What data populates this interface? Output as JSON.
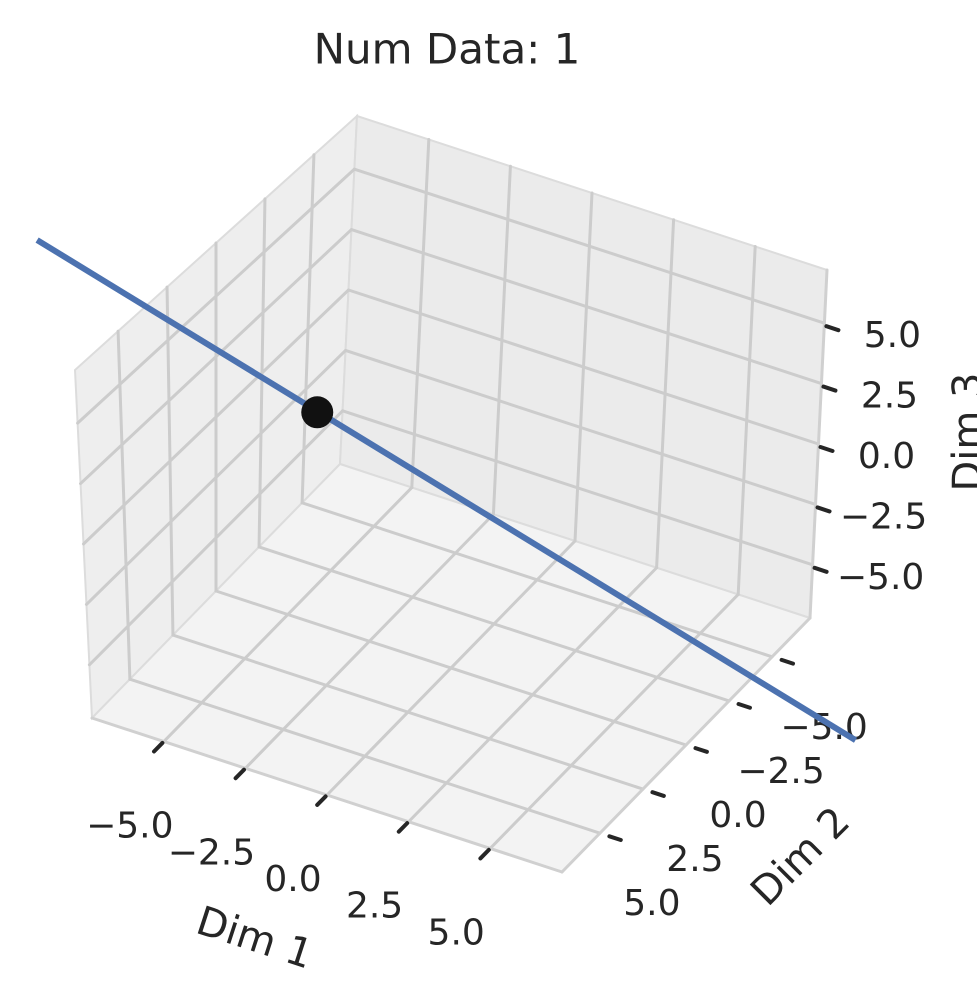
{
  "chart_data": {
    "type": "scatter3d",
    "title": "Num Data: 1",
    "xlabel": "Dim 1",
    "ylabel": "Dim 2",
    "zlabel": "Dim 3",
    "xlim": [
      -7.2,
      7.2
    ],
    "ylim": [
      -7.2,
      7.2
    ],
    "zlim": [
      -7.2,
      7.2
    ],
    "xticks": [
      {
        "value": -5,
        "label": "−5.0"
      },
      {
        "value": -2.5,
        "label": "−2.5"
      },
      {
        "value": 0,
        "label": "0.0"
      },
      {
        "value": 2.5,
        "label": "2.5"
      },
      {
        "value": 5,
        "label": "5.0"
      }
    ],
    "yticks": [
      {
        "value": -5,
        "label": "−5.0"
      },
      {
        "value": -2.5,
        "label": "−2.5"
      },
      {
        "value": 0,
        "label": "0.0"
      },
      {
        "value": 2.5,
        "label": "2.5"
      },
      {
        "value": 5,
        "label": "5.0"
      }
    ],
    "zticks": [
      {
        "value": -5,
        "label": "−5.0"
      },
      {
        "value": -2.5,
        "label": "−2.5"
      },
      {
        "value": 0,
        "label": "0.0"
      },
      {
        "value": 2.5,
        "label": "2.5"
      },
      {
        "value": 5,
        "label": "5.0"
      }
    ],
    "grid": true,
    "series": [
      {
        "type": "line",
        "color": "#4c72b0",
        "x": [
          -15.5,
          15.1
        ],
        "y": [
          -5.0,
          4.8
        ],
        "z": [
          0,
          0
        ]
      },
      {
        "type": "scatter",
        "color": "#111111",
        "x": [
          -5.0
        ],
        "y": [
          -1.6
        ],
        "z": [
          0.0
        ]
      }
    ]
  }
}
